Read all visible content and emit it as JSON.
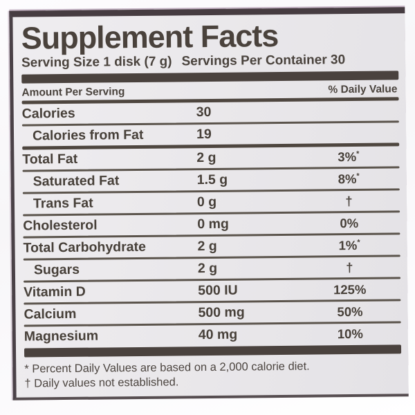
{
  "label": {
    "title": "Supplement Facts",
    "serving_size": "Serving Size 1 disk (7 g)",
    "servings_per_container": "Servings Per Container 30",
    "columns": {
      "amount": "Amount Per Serving",
      "dv": "% Daily Value"
    },
    "rows": [
      {
        "name": "Calories",
        "amount": "30",
        "dv": "",
        "dv_mark": ""
      },
      {
        "name": "Calories from Fat",
        "amount": "19",
        "dv": "",
        "dv_mark": ""
      },
      {
        "name": "Total Fat",
        "amount": "2 g",
        "dv": "3%",
        "dv_mark": "*"
      },
      {
        "name": "Saturated Fat",
        "amount": "1.5 g",
        "dv": "8%",
        "dv_mark": "*"
      },
      {
        "name": "Trans Fat",
        "amount": "0 g",
        "dv": "†",
        "dv_mark": ""
      },
      {
        "name": "Cholesterol",
        "amount": "0 mg",
        "dv": "0%",
        "dv_mark": ""
      },
      {
        "name": "Total Carbohydrate",
        "amount": "2 g",
        "dv": "1%",
        "dv_mark": "*"
      },
      {
        "name": "Sugars",
        "amount": "2 g",
        "dv": "†",
        "dv_mark": ""
      },
      {
        "name": "Vitamin D",
        "amount": "500 IU",
        "dv": "125%",
        "dv_mark": ""
      },
      {
        "name": "Calcium",
        "amount": "500 mg",
        "dv": "50%",
        "dv_mark": ""
      },
      {
        "name": "Magnesium",
        "amount": "40 mg",
        "dv": "10%",
        "dv_mark": ""
      }
    ],
    "footnotes": [
      "* Percent Daily Values are based on a 2,000 calorie diet.",
      "† Daily values not established."
    ]
  },
  "colors": {
    "ink": "#474039",
    "label_background": "#e9e7ea",
    "border": "#463c41",
    "page_background": "#fbfafc"
  }
}
